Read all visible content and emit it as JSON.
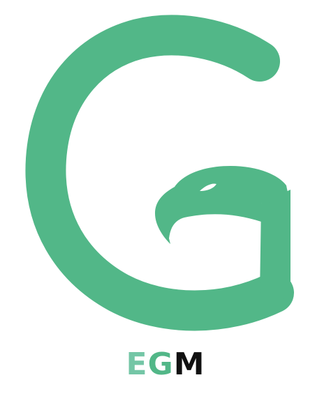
{
  "logo": {
    "wordmark": {
      "letter_1": "E",
      "letter_2": "G",
      "letter_3": "M"
    },
    "colors": {
      "primary_green": "#52b788",
      "light_green": "#74c6a6",
      "text_black": "#111111",
      "background": "#ffffff"
    },
    "icon_names": [
      "g-letterform-icon",
      "eagle-head-icon"
    ]
  }
}
